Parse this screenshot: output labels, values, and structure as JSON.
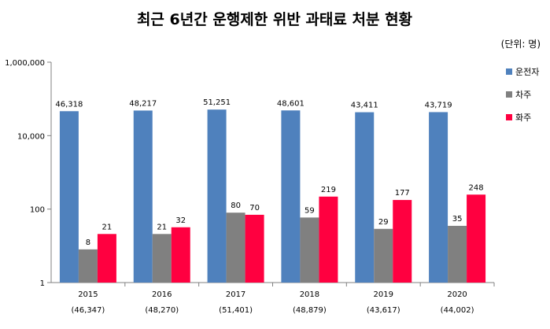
{
  "chart_data": {
    "type": "bar",
    "title": "최근 6년간 운행제한 위반 과태료 처분 현황",
    "unit": "(단위: 명)",
    "y_scale": "log",
    "ylim": [
      1,
      1000000
    ],
    "y_ticks": [
      "1",
      "100",
      "10,000",
      "1,000,000"
    ],
    "y_tick_values": [
      1,
      100,
      10000,
      1000000
    ],
    "categories": [
      "2015",
      "2016",
      "2017",
      "2018",
      "2019",
      "2020"
    ],
    "category_totals": [
      "(46,347)",
      "(48,270)",
      "(51,401)",
      "(48,879)",
      "(43,617)",
      "(44,002)"
    ],
    "legend_position": "right",
    "series": [
      {
        "name": "운전자",
        "color": "#4F81BD",
        "values": [
          46318,
          48217,
          51251,
          48601,
          43411,
          43719
        ],
        "labels": [
          "46,318",
          "48,217",
          "51,251",
          "48,601",
          "43,411",
          "43,719"
        ]
      },
      {
        "name": "차주",
        "color": "#808080",
        "values": [
          8,
          21,
          80,
          59,
          29,
          35
        ],
        "labels": [
          "8",
          "21",
          "80",
          "59",
          "29",
          "35"
        ]
      },
      {
        "name": "화주",
        "color": "#FF0040",
        "values": [
          21,
          32,
          70,
          219,
          177,
          248
        ],
        "labels": [
          "21",
          "32",
          "70",
          "219",
          "177",
          "248"
        ]
      }
    ]
  }
}
